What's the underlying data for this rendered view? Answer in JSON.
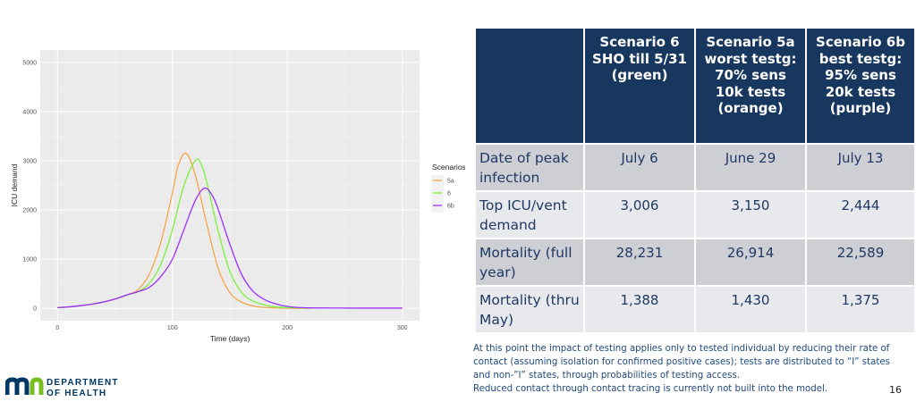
{
  "chart_data": {
    "type": "line",
    "xlabel": "Time (days)",
    "ylabel": "ICU demand",
    "xlim": [
      -15,
      315
    ],
    "ylim": [
      -250,
      5250
    ],
    "xticks": [
      0,
      100,
      200,
      300
    ],
    "yticks": [
      0,
      1000,
      2000,
      3000,
      4000,
      5000
    ],
    "grid": true,
    "background": "#EBEBEB",
    "legend": {
      "title": "Scenarios",
      "position": "right"
    },
    "series": [
      {
        "name": "5a",
        "color": "#F5A54A",
        "x": [
          0,
          10,
          20,
          30,
          40,
          50,
          60,
          70,
          80,
          90,
          100,
          105,
          112,
          120,
          130,
          140,
          150,
          160,
          170,
          180,
          200,
          220
        ],
        "y": [
          15,
          30,
          55,
          85,
          130,
          190,
          270,
          380,
          700,
          1350,
          2350,
          2900,
          3150,
          2700,
          1700,
          800,
          320,
          130,
          50,
          20,
          5,
          3
        ]
      },
      {
        "name": "6",
        "color": "#7CF03C",
        "x": [
          0,
          10,
          20,
          30,
          40,
          50,
          60,
          70,
          80,
          90,
          100,
          110,
          120,
          125,
          130,
          140,
          150,
          160,
          170,
          180,
          190,
          200,
          220
        ],
        "y": [
          15,
          30,
          55,
          85,
          130,
          190,
          270,
          340,
          510,
          900,
          1600,
          2500,
          3006,
          2930,
          2550,
          1550,
          750,
          330,
          150,
          70,
          30,
          15,
          5
        ]
      },
      {
        "name": "6b",
        "color": "#9B30FF",
        "x": [
          0,
          10,
          20,
          30,
          40,
          50,
          60,
          70,
          80,
          90,
          100,
          110,
          120,
          128,
          135,
          140,
          150,
          160,
          170,
          180,
          190,
          200,
          220,
          300
        ],
        "y": [
          15,
          30,
          55,
          85,
          130,
          190,
          270,
          340,
          430,
          650,
          1000,
          1600,
          2200,
          2444,
          2280,
          2000,
          1300,
          700,
          350,
          180,
          90,
          40,
          10,
          5
        ]
      }
    ]
  },
  "table": {
    "headers": [
      "",
      "Scenario 6\nSHO till 5/31\n(green)",
      "Scenario 5a\nworst testg:\n70% sens\n10k tests\n(orange)",
      "Scenario 6b\nbest testg:\n95% sens\n20k tests\n(purple)"
    ],
    "rows": [
      {
        "label": "Date of peak infection",
        "values": [
          "July 6",
          "June 29",
          "July 13"
        ]
      },
      {
        "label": "Top ICU/vent demand",
        "values": [
          "3,006",
          "3,150",
          "2,444"
        ]
      },
      {
        "label": "Mortality (full year)",
        "values": [
          "28,231",
          "26,914",
          "22,589"
        ]
      },
      {
        "label": "Mortality (thru May)",
        "values": [
          "1,388",
          "1,430",
          "1,375"
        ]
      }
    ]
  },
  "note": "At this point the impact of testing applies only to tested individual by reducing their rate of contact (assuming isolation for confirmed positive cases); tests are distributed to “I” states and non-”I” states, through probabilities of testing access.",
  "note2": "Reduced contact through contact tracing is currently not built into the model.",
  "page_number": "16",
  "logo": {
    "line1": "DEPARTMENT",
    "line2": "OF HEALTH",
    "colors": [
      "#003865",
      "#78BE21"
    ]
  }
}
